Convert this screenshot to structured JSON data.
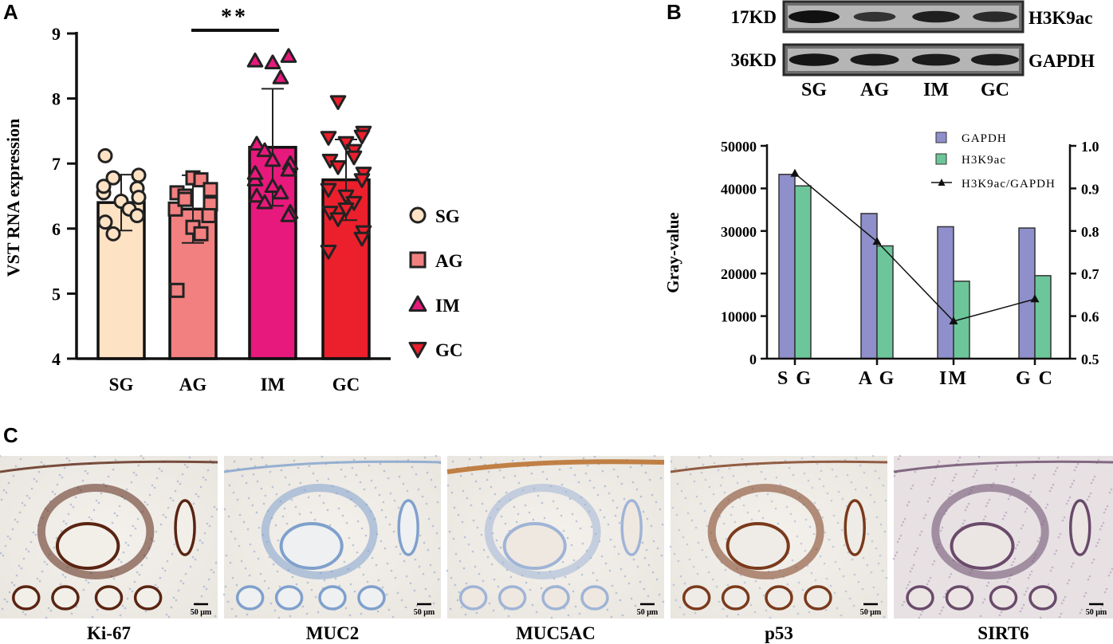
{
  "panels": {
    "A": {
      "letter": "A"
    },
    "B": {
      "letter": "B"
    },
    "C": {
      "letter": "C"
    }
  },
  "colors": {
    "SG": "#fde2c4",
    "AG": "#f28080",
    "IM": "#e8197c",
    "GC": "#ec1f2c",
    "gapdh_bar": "#8f8fcb",
    "h3k9ac_bar": "#6cc69a"
  },
  "chart_data": [
    {
      "type": "bar",
      "panel": "A",
      "ylabel": "VST RNA expression",
      "ylim": [
        4,
        9
      ],
      "yticks": [
        "4",
        "5",
        "6",
        "7",
        "8",
        "9"
      ],
      "categories": [
        "SG",
        "AG",
        "IM",
        "GC"
      ],
      "values": [
        6.4,
        6.3,
        7.25,
        6.75
      ],
      "error_sd": [
        0.43,
        0.52,
        0.9,
        0.62
      ],
      "significance": {
        "between": [
          "AG",
          "IM"
        ],
        "label": "**"
      },
      "legend": [
        {
          "label": "SG",
          "marker": "circle"
        },
        {
          "label": "AG",
          "marker": "square"
        },
        {
          "label": "IM",
          "marker": "triangle-up"
        },
        {
          "label": "GC",
          "marker": "triangle-down"
        }
      ],
      "points": {
        "SG": [
          7.12,
          6.78,
          6.82,
          6.62,
          6.55,
          6.42,
          6.3,
          6.1,
          5.92,
          6.48,
          6.2,
          6.65
        ],
        "AG": [
          6.78,
          6.75,
          6.55,
          6.5,
          6.38,
          6.2,
          6.3,
          6.02,
          5.92,
          5.05,
          6.45,
          6.6
        ],
        "IM": [
          8.65,
          8.58,
          8.55,
          8.32,
          7.3,
          7.2,
          7.0,
          6.9,
          6.75,
          6.65,
          6.55,
          6.5,
          6.4,
          6.25,
          6.2,
          6.85,
          7.05
        ],
        "GC": [
          7.95,
          7.48,
          7.42,
          7.4,
          7.32,
          7.2,
          7.05,
          6.95,
          6.85,
          6.75,
          6.6,
          6.5,
          6.4,
          6.25,
          6.15,
          5.95,
          5.85,
          5.65,
          6.3,
          7.1
        ]
      }
    },
    {
      "type": "bar",
      "panel": "B",
      "ylabel": "Gray-value",
      "ylim": [
        0,
        50000
      ],
      "yticks": [
        "0",
        "10000",
        "20000",
        "30000",
        "40000",
        "50000"
      ],
      "y2lim": [
        0.5,
        1.0
      ],
      "y2ticks": [
        "0.5",
        "0.6",
        "0.7",
        "0.8",
        "0.9",
        "1.0"
      ],
      "categories": [
        "S G",
        "A G",
        "IM",
        "G C"
      ],
      "series": [
        {
          "name": "GAPDH",
          "values": [
            43300,
            34100,
            31000,
            30700
          ]
        },
        {
          "name": "H3K9ac",
          "values": [
            40600,
            26500,
            18200,
            19500
          ]
        },
        {
          "name": "H3K9ac/GAPDH",
          "axis": "right",
          "values": [
            0.935,
            0.775,
            0.588,
            0.64
          ]
        }
      ],
      "legend_placement": "top-right"
    }
  ],
  "blot": {
    "rows": [
      {
        "kd": "17KD",
        "protein": "H3K9ac",
        "intensities": [
          1.0,
          0.62,
          0.85,
          0.72
        ]
      },
      {
        "kd": "36KD",
        "protein": "GAPDH",
        "intensities": [
          0.95,
          0.9,
          0.88,
          0.87
        ]
      }
    ],
    "lanes": [
      "SG",
      "AG",
      "IM",
      "GC"
    ]
  },
  "histology": [
    {
      "label": "Ki-67",
      "scale": "50 μm"
    },
    {
      "label": "MUC2",
      "scale": "50 μm"
    },
    {
      "label": "MUC5AC",
      "scale": "50 μm"
    },
    {
      "label": "p53",
      "scale": "50 μm"
    },
    {
      "label": "SIRT6",
      "scale": "50 μm"
    }
  ]
}
